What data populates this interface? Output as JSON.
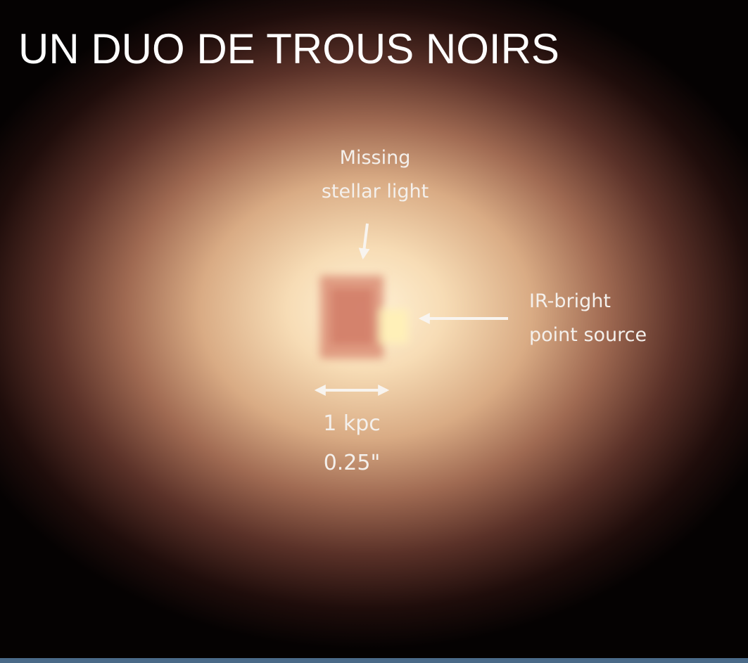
{
  "title": "UN DUO DE TROUS NOIRS",
  "annotations": {
    "missing_light": [
      "Missing",
      "stellar light"
    ],
    "point_source": [
      "IR-bright",
      "point source"
    ],
    "scale": [
      "1 kpc",
      "0.25\""
    ]
  }
}
